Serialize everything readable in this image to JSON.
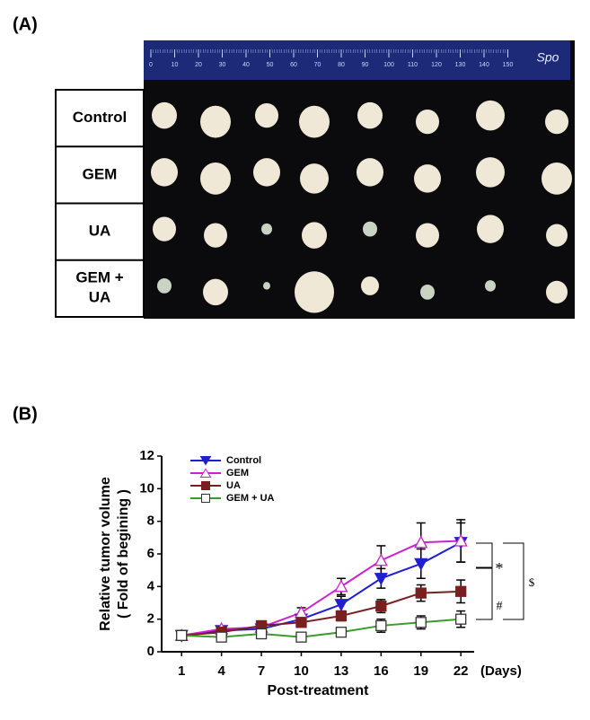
{
  "panel_a": {
    "label": "(A)",
    "rows": [
      "Control",
      "GEM",
      "UA",
      "GEM +\nUA"
    ],
    "ruler_labels": [
      "0",
      "10",
      "20",
      "30",
      "40",
      "50",
      "60",
      "70",
      "80",
      "90",
      "100",
      "110",
      "120",
      "130",
      "140",
      "150"
    ],
    "ruler_brand": "Spo"
  },
  "panel_b": {
    "label": "(B)"
  },
  "chart_data": {
    "type": "line",
    "ylabel": [
      "Relative tumor volume",
      "( Fold of begining )"
    ],
    "xlabel": "Post-treatment",
    "x_unit": "(Days)",
    "x": [
      1,
      4,
      7,
      10,
      13,
      16,
      19,
      22
    ],
    "xlim": [
      -0.5,
      23
    ],
    "xticks": [
      1,
      4,
      7,
      10,
      13,
      16,
      19,
      22
    ],
    "ylim": [
      0,
      12
    ],
    "yticks": [
      0,
      2,
      4,
      6,
      8,
      10,
      12
    ],
    "legend": "upper left",
    "series": [
      {
        "name": "Control",
        "color": "#1f1fd0",
        "marker": "triangle-down",
        "filled": true,
        "values": [
          1,
          1.3,
          1.4,
          2.0,
          2.9,
          4.5,
          5.4,
          6.7
        ],
        "errors": [
          0,
          0.1,
          0.1,
          0.3,
          0.5,
          0.6,
          0.9,
          1.2
        ]
      },
      {
        "name": "GEM",
        "color": "#cc22cc",
        "marker": "triangle-up",
        "filled": false,
        "values": [
          1,
          1.4,
          1.5,
          2.4,
          4.0,
          5.6,
          6.7,
          6.8
        ],
        "errors": [
          0,
          0.1,
          0.1,
          0.3,
          0.5,
          0.9,
          1.2,
          1.3
        ]
      },
      {
        "name": "UA",
        "color": "#7a1f1f",
        "marker": "square",
        "filled": true,
        "values": [
          1,
          1.2,
          1.6,
          1.8,
          2.2,
          2.8,
          3.6,
          3.7
        ],
        "errors": [
          0,
          0.1,
          0.1,
          0.2,
          0.3,
          0.4,
          0.5,
          0.7
        ]
      },
      {
        "name": "GEM + UA",
        "color": "#3a9a2a",
        "marker": "square",
        "filled": false,
        "values": [
          1,
          0.9,
          1.1,
          0.9,
          1.2,
          1.6,
          1.8,
          2.0
        ],
        "errors": [
          0,
          0.1,
          0.1,
          0.1,
          0.2,
          0.4,
          0.4,
          0.5
        ]
      }
    ],
    "annotations": [
      "*",
      "#",
      "$"
    ]
  }
}
